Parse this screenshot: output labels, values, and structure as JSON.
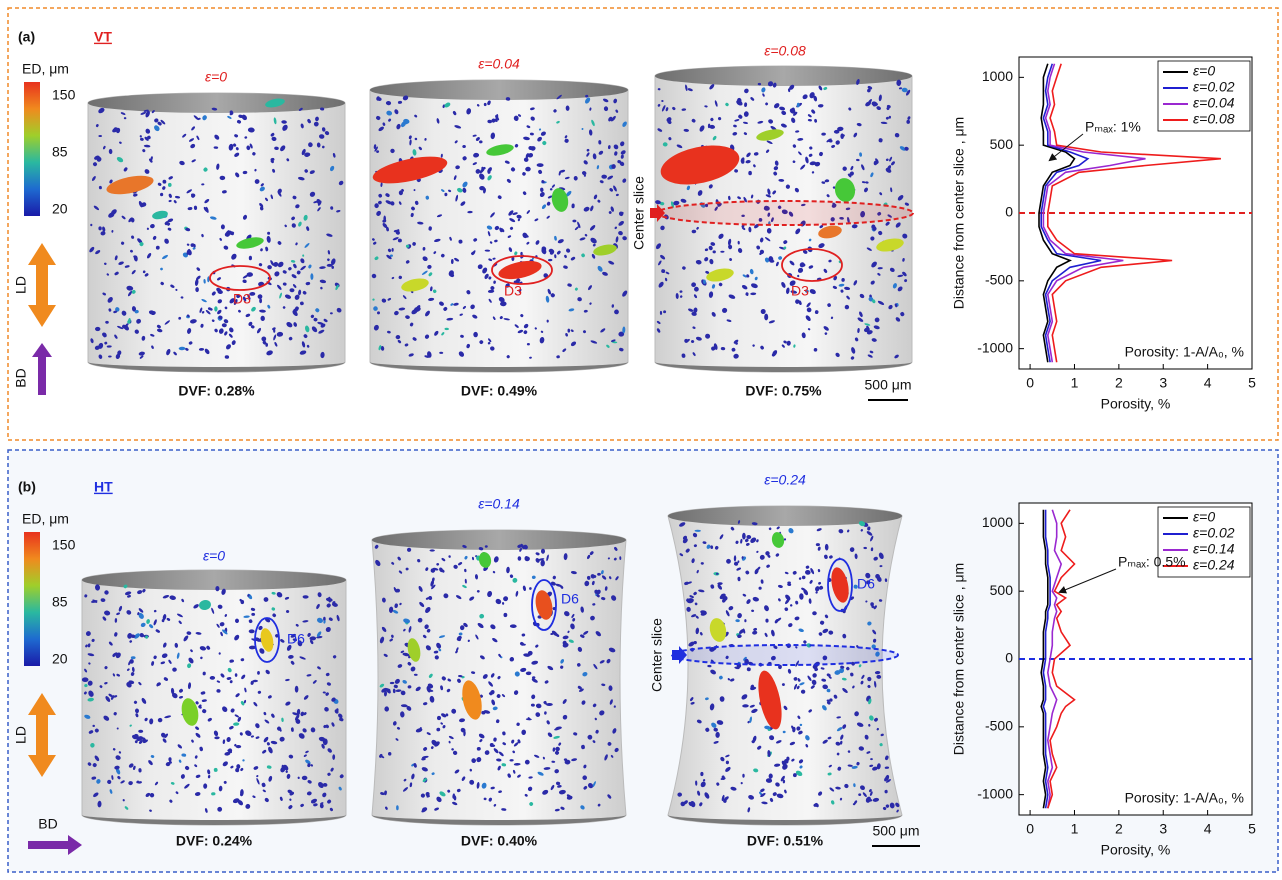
{
  "panels": [
    {
      "label": "(a)",
      "title": "VT",
      "colorbar": {
        "label": "ED, μm",
        "lim": [
          13,
          166
        ],
        "ticks": [
          150,
          85,
          20
        ]
      },
      "directions": {
        "ld": "LD",
        "bd": "BD"
      },
      "specimens": [
        {
          "strain": "ε=0",
          "dvf": "DVF: 0.28%",
          "defect": "D3"
        },
        {
          "strain": "ε=0.04",
          "dvf": "DVF: 0.49%",
          "defect": "D3"
        },
        {
          "strain": "ε=0.08",
          "dvf": "DVF: 0.75%",
          "defect": "D3"
        }
      ],
      "center_slice": "Center slice",
      "scale_bar": "500 μm"
    },
    {
      "label": "(b)",
      "title": "HT",
      "colorbar": {
        "label": "ED, μm",
        "lim": [
          13,
          166
        ],
        "ticks": [
          150,
          85,
          20
        ]
      },
      "directions": {
        "ld": "LD",
        "bd": "BD"
      },
      "specimens": [
        {
          "strain": "ε=0",
          "dvf": "DVF: 0.24%",
          "defect": "D6"
        },
        {
          "strain": "ε=0.14",
          "dvf": "DVF: 0.40%",
          "defect": "D6"
        },
        {
          "strain": "ε=0.24",
          "dvf": "DVF: 0.51%",
          "defect": "D6"
        }
      ],
      "center_slice": "Center slice",
      "scale_bar": "500 μm"
    }
  ],
  "chart_data": [
    {
      "type": "line",
      "orientation": "vertical-profile",
      "xlabel": "Porosity, %",
      "ylabel": "Distance from center slice , μm",
      "y": [
        -1100,
        -1000,
        -900,
        -800,
        -700,
        -600,
        -500,
        -400,
        -350,
        -300,
        -200,
        -100,
        0,
        100,
        200,
        300,
        350,
        400,
        450,
        500,
        600,
        700,
        800,
        900,
        1000,
        1100
      ],
      "series": [
        {
          "name": "ε=0",
          "color": "#000000",
          "values": [
            0.4,
            0.35,
            0.3,
            0.4,
            0.35,
            0.3,
            0.4,
            0.6,
            0.9,
            0.5,
            0.3,
            0.2,
            0.2,
            0.25,
            0.3,
            0.5,
            0.9,
            1.0,
            0.8,
            0.3,
            0.3,
            0.25,
            0.3,
            0.3,
            0.3,
            0.4
          ]
        },
        {
          "name": "ε=0.02",
          "color": "#1f1fd0",
          "values": [
            0.45,
            0.4,
            0.35,
            0.45,
            0.4,
            0.35,
            0.5,
            0.9,
            1.6,
            0.6,
            0.4,
            0.25,
            0.25,
            0.3,
            0.35,
            0.6,
            1.1,
            1.3,
            0.9,
            0.4,
            0.4,
            0.3,
            0.4,
            0.35,
            0.4,
            0.5
          ]
        },
        {
          "name": "ε=0.04",
          "color": "#9a28d0",
          "values": [
            0.5,
            0.45,
            0.4,
            0.5,
            0.45,
            0.4,
            0.6,
            1.2,
            2.1,
            0.8,
            0.45,
            0.3,
            0.3,
            0.35,
            0.4,
            0.8,
            1.8,
            2.6,
            1.2,
            0.45,
            0.45,
            0.35,
            0.45,
            0.4,
            0.45,
            0.55
          ]
        },
        {
          "name": "ε=0.08",
          "color": "#ee1c1c",
          "values": [
            0.6,
            0.55,
            0.5,
            0.6,
            0.55,
            0.5,
            0.8,
            1.6,
            3.2,
            1.0,
            0.6,
            0.4,
            0.4,
            0.45,
            0.5,
            1.1,
            2.6,
            4.3,
            1.6,
            0.6,
            0.55,
            0.45,
            0.55,
            0.5,
            0.6,
            0.7
          ]
        }
      ],
      "xlim": [
        -0.25,
        5
      ],
      "xticks": [
        0,
        1,
        2,
        3,
        4,
        5
      ],
      "ylim": [
        -1150,
        1150
      ],
      "yticks": [
        -1000,
        -500,
        0,
        500,
        1000
      ],
      "reference_line": {
        "value": 0,
        "color": "#e02020"
      },
      "legend": "upper right",
      "annotations": [
        {
          "text": "Pₘₐₓ: 1%"
        },
        {
          "text": "Porosity: 1-A/A₀, %"
        }
      ]
    },
    {
      "type": "line",
      "orientation": "vertical-profile",
      "xlabel": "Porosity, %",
      "ylabel": "Distance from center slice , μm",
      "y": [
        -1100,
        -1000,
        -900,
        -800,
        -700,
        -600,
        -500,
        -400,
        -350,
        -300,
        -200,
        -100,
        0,
        100,
        200,
        300,
        350,
        400,
        450,
        500,
        600,
        700,
        800,
        900,
        1000,
        1100
      ],
      "series": [
        {
          "name": "ε=0",
          "color": "#000000",
          "values": [
            0.3,
            0.35,
            0.3,
            0.35,
            0.3,
            0.3,
            0.3,
            0.3,
            0.25,
            0.3,
            0.3,
            0.25,
            0.3,
            0.3,
            0.3,
            0.35,
            0.35,
            0.4,
            0.4,
            0.4,
            0.4,
            0.35,
            0.35,
            0.3,
            0.3,
            0.3
          ]
        },
        {
          "name": "ε=0.02",
          "color": "#1f1fd0",
          "values": [
            0.35,
            0.4,
            0.35,
            0.4,
            0.35,
            0.35,
            0.35,
            0.35,
            0.3,
            0.35,
            0.35,
            0.3,
            0.35,
            0.35,
            0.35,
            0.4,
            0.4,
            0.45,
            0.45,
            0.45,
            0.45,
            0.4,
            0.4,
            0.35,
            0.35,
            0.35
          ]
        },
        {
          "name": "ε=0.14",
          "color": "#9a28d0",
          "values": [
            0.4,
            0.45,
            0.4,
            0.5,
            0.45,
            0.4,
            0.45,
            0.5,
            0.55,
            0.6,
            0.45,
            0.4,
            0.45,
            0.5,
            0.5,
            0.55,
            0.6,
            0.55,
            0.6,
            0.5,
            0.6,
            0.7,
            0.55,
            0.6,
            0.6,
            0.5
          ]
        },
        {
          "name": "ε=0.24",
          "color": "#ee1c1c",
          "values": [
            0.4,
            0.5,
            0.45,
            0.6,
            0.5,
            0.45,
            0.6,
            0.7,
            0.8,
            1.0,
            0.6,
            0.5,
            0.55,
            0.9,
            0.7,
            0.6,
            0.7,
            0.6,
            0.8,
            0.55,
            0.7,
            1.0,
            0.7,
            0.8,
            0.7,
            0.9
          ]
        }
      ],
      "xlim": [
        -0.25,
        5
      ],
      "xticks": [
        0,
        1,
        2,
        3,
        4,
        5
      ],
      "ylim": [
        -1150,
        1150
      ],
      "yticks": [
        -1000,
        -500,
        0,
        500,
        1000
      ],
      "reference_line": {
        "value": 0,
        "color": "#1f2ee0"
      },
      "legend": "upper right",
      "annotations": [
        {
          "text": "Pₘₐₓ: 0.5%"
        },
        {
          "text": "Porosity: 1-A/A₀, %"
        }
      ]
    }
  ]
}
